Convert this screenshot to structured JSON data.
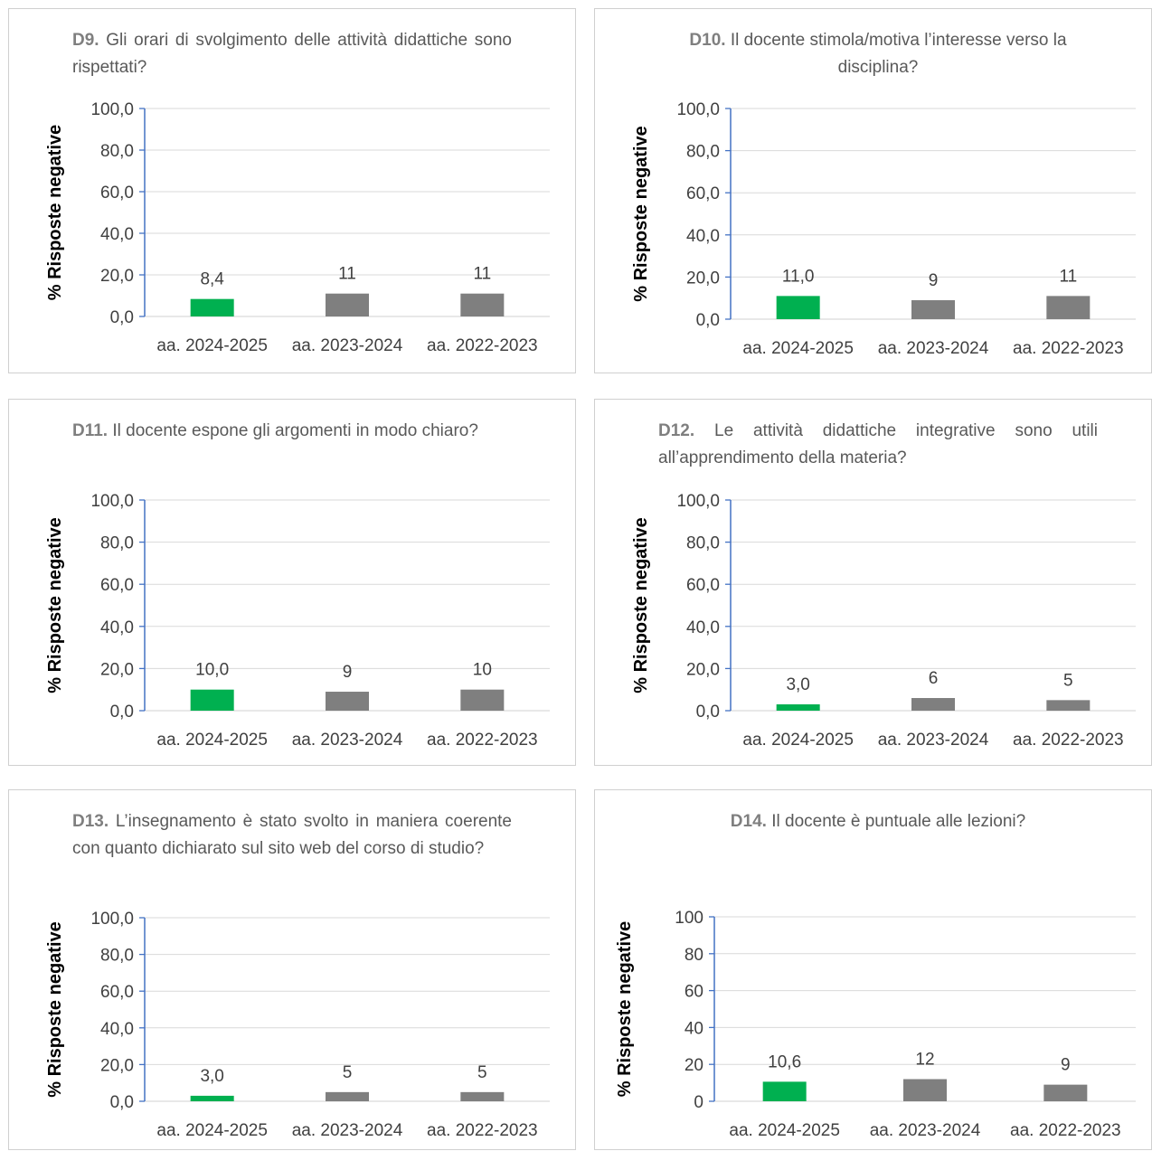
{
  "chart_data": [
    {
      "type": "bar",
      "title_id": "D9.",
      "title_text": "Gli orari di svolgimento delle attività didattiche sono rispettati?",
      "ylabel": "% Risposte negative",
      "ylim": [
        0,
        100
      ],
      "yticks": [
        "0,0",
        "20,0",
        "40,0",
        "60,0",
        "80,0",
        "100,0"
      ],
      "categories": [
        "aa. 2024-2025",
        "aa. 2023-2024",
        "aa. 2022-2023"
      ],
      "values": [
        8.4,
        11,
        11
      ],
      "data_labels": [
        "8,4",
        "11",
        "11"
      ],
      "colors": [
        "#00b050",
        "#7f7f7f",
        "#7f7f7f"
      ]
    },
    {
      "type": "bar",
      "title_id": "D10.",
      "title_text": "Il docente stimola/motiva l’interesse verso la disciplina?",
      "ylabel": "% Risposte negative",
      "ylim": [
        0,
        100
      ],
      "yticks": [
        "0,0",
        "20,0",
        "40,0",
        "60,0",
        "80,0",
        "100,0"
      ],
      "categories": [
        "aa. 2024-2025",
        "aa. 2023-2024",
        "aa. 2022-2023"
      ],
      "values": [
        11.0,
        9,
        11
      ],
      "data_labels": [
        "11,0",
        "9",
        "11"
      ],
      "colors": [
        "#00b050",
        "#7f7f7f",
        "#7f7f7f"
      ]
    },
    {
      "type": "bar",
      "title_id": "D11.",
      "title_text": "Il docente espone gli argomenti in modo chiaro?",
      "ylabel": "% Risposte negative",
      "ylim": [
        0,
        100
      ],
      "yticks": [
        "0,0",
        "20,0",
        "40,0",
        "60,0",
        "80,0",
        "100,0"
      ],
      "categories": [
        "aa. 2024-2025",
        "aa. 2023-2024",
        "aa. 2022-2023"
      ],
      "values": [
        10.0,
        9,
        10
      ],
      "data_labels": [
        "10,0",
        "9",
        "10"
      ],
      "colors": [
        "#00b050",
        "#7f7f7f",
        "#7f7f7f"
      ]
    },
    {
      "type": "bar",
      "title_id": "D12.",
      "title_text": "Le attività didattiche integrative sono utili all’apprendimento della materia?",
      "ylabel": "% Risposte negative",
      "ylim": [
        0,
        100
      ],
      "yticks": [
        "0,0",
        "20,0",
        "40,0",
        "60,0",
        "80,0",
        "100,0"
      ],
      "categories": [
        "aa. 2024-2025",
        "aa. 2023-2024",
        "aa. 2022-2023"
      ],
      "values": [
        3.0,
        6,
        5
      ],
      "data_labels": [
        "3,0",
        "6",
        "5"
      ],
      "colors": [
        "#00b050",
        "#7f7f7f",
        "#7f7f7f"
      ]
    },
    {
      "type": "bar",
      "title_id": "D13.",
      "title_text": "L’insegnamento è stato svolto in maniera coerente con quanto dichiarato sul sito web del corso di studio?",
      "ylabel": "% Risposte negative",
      "ylim": [
        0,
        100
      ],
      "yticks": [
        "0,0",
        "20,0",
        "40,0",
        "60,0",
        "80,0",
        "100,0"
      ],
      "categories": [
        "aa. 2024-2025",
        "aa. 2023-2024",
        "aa. 2022-2023"
      ],
      "values": [
        3.0,
        5,
        5
      ],
      "data_labels": [
        "3,0",
        "5",
        "5"
      ],
      "colors": [
        "#00b050",
        "#7f7f7f",
        "#7f7f7f"
      ]
    },
    {
      "type": "bar",
      "title_id": "D14.",
      "title_text": "Il docente è puntuale alle lezioni?",
      "ylabel": "% Risposte negative",
      "ylim": [
        0,
        100
      ],
      "yticks": [
        "0",
        "20",
        "40",
        "60",
        "80",
        "100"
      ],
      "categories": [
        "aa. 2024-2025",
        "aa. 2023-2024",
        "aa. 2022-2023"
      ],
      "values": [
        10.6,
        12,
        9
      ],
      "data_labels": [
        "10,6",
        "12",
        "9"
      ],
      "colors": [
        "#00b050",
        "#7f7f7f",
        "#7f7f7f"
      ]
    }
  ]
}
